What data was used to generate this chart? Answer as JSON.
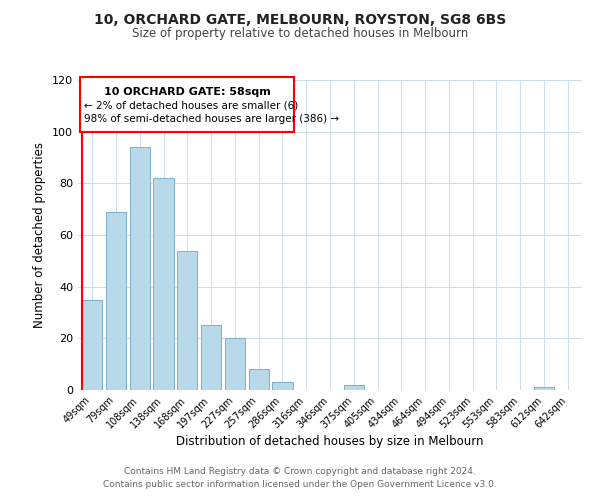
{
  "title": "10, ORCHARD GATE, MELBOURN, ROYSTON, SG8 6BS",
  "subtitle": "Size of property relative to detached houses in Melbourn",
  "xlabel": "Distribution of detached houses by size in Melbourn",
  "ylabel": "Number of detached properties",
  "bar_labels": [
    "49sqm",
    "79sqm",
    "108sqm",
    "138sqm",
    "168sqm",
    "197sqm",
    "227sqm",
    "257sqm",
    "286sqm",
    "316sqm",
    "346sqm",
    "375sqm",
    "405sqm",
    "434sqm",
    "464sqm",
    "494sqm",
    "523sqm",
    "553sqm",
    "583sqm",
    "612sqm",
    "642sqm"
  ],
  "bar_values": [
    35,
    69,
    94,
    82,
    54,
    25,
    20,
    8,
    3,
    0,
    0,
    2,
    0,
    0,
    0,
    0,
    0,
    0,
    0,
    1,
    0
  ],
  "bar_color": "#b8d9ea",
  "bar_edge_color": "#7ab0cc",
  "ylim": [
    0,
    120
  ],
  "yticks": [
    0,
    20,
    40,
    60,
    80,
    100,
    120
  ],
  "annotation_title": "10 ORCHARD GATE: 58sqm",
  "annotation_line1": "← 2% of detached houses are smaller (6)",
  "annotation_line2": "98% of semi-detached houses are larger (386) →",
  "footer_line1": "Contains HM Land Registry data © Crown copyright and database right 2024.",
  "footer_line2": "Contains public sector information licensed under the Open Government Licence v3.0.",
  "background_color": "#ffffff",
  "grid_color": "#ccddee"
}
